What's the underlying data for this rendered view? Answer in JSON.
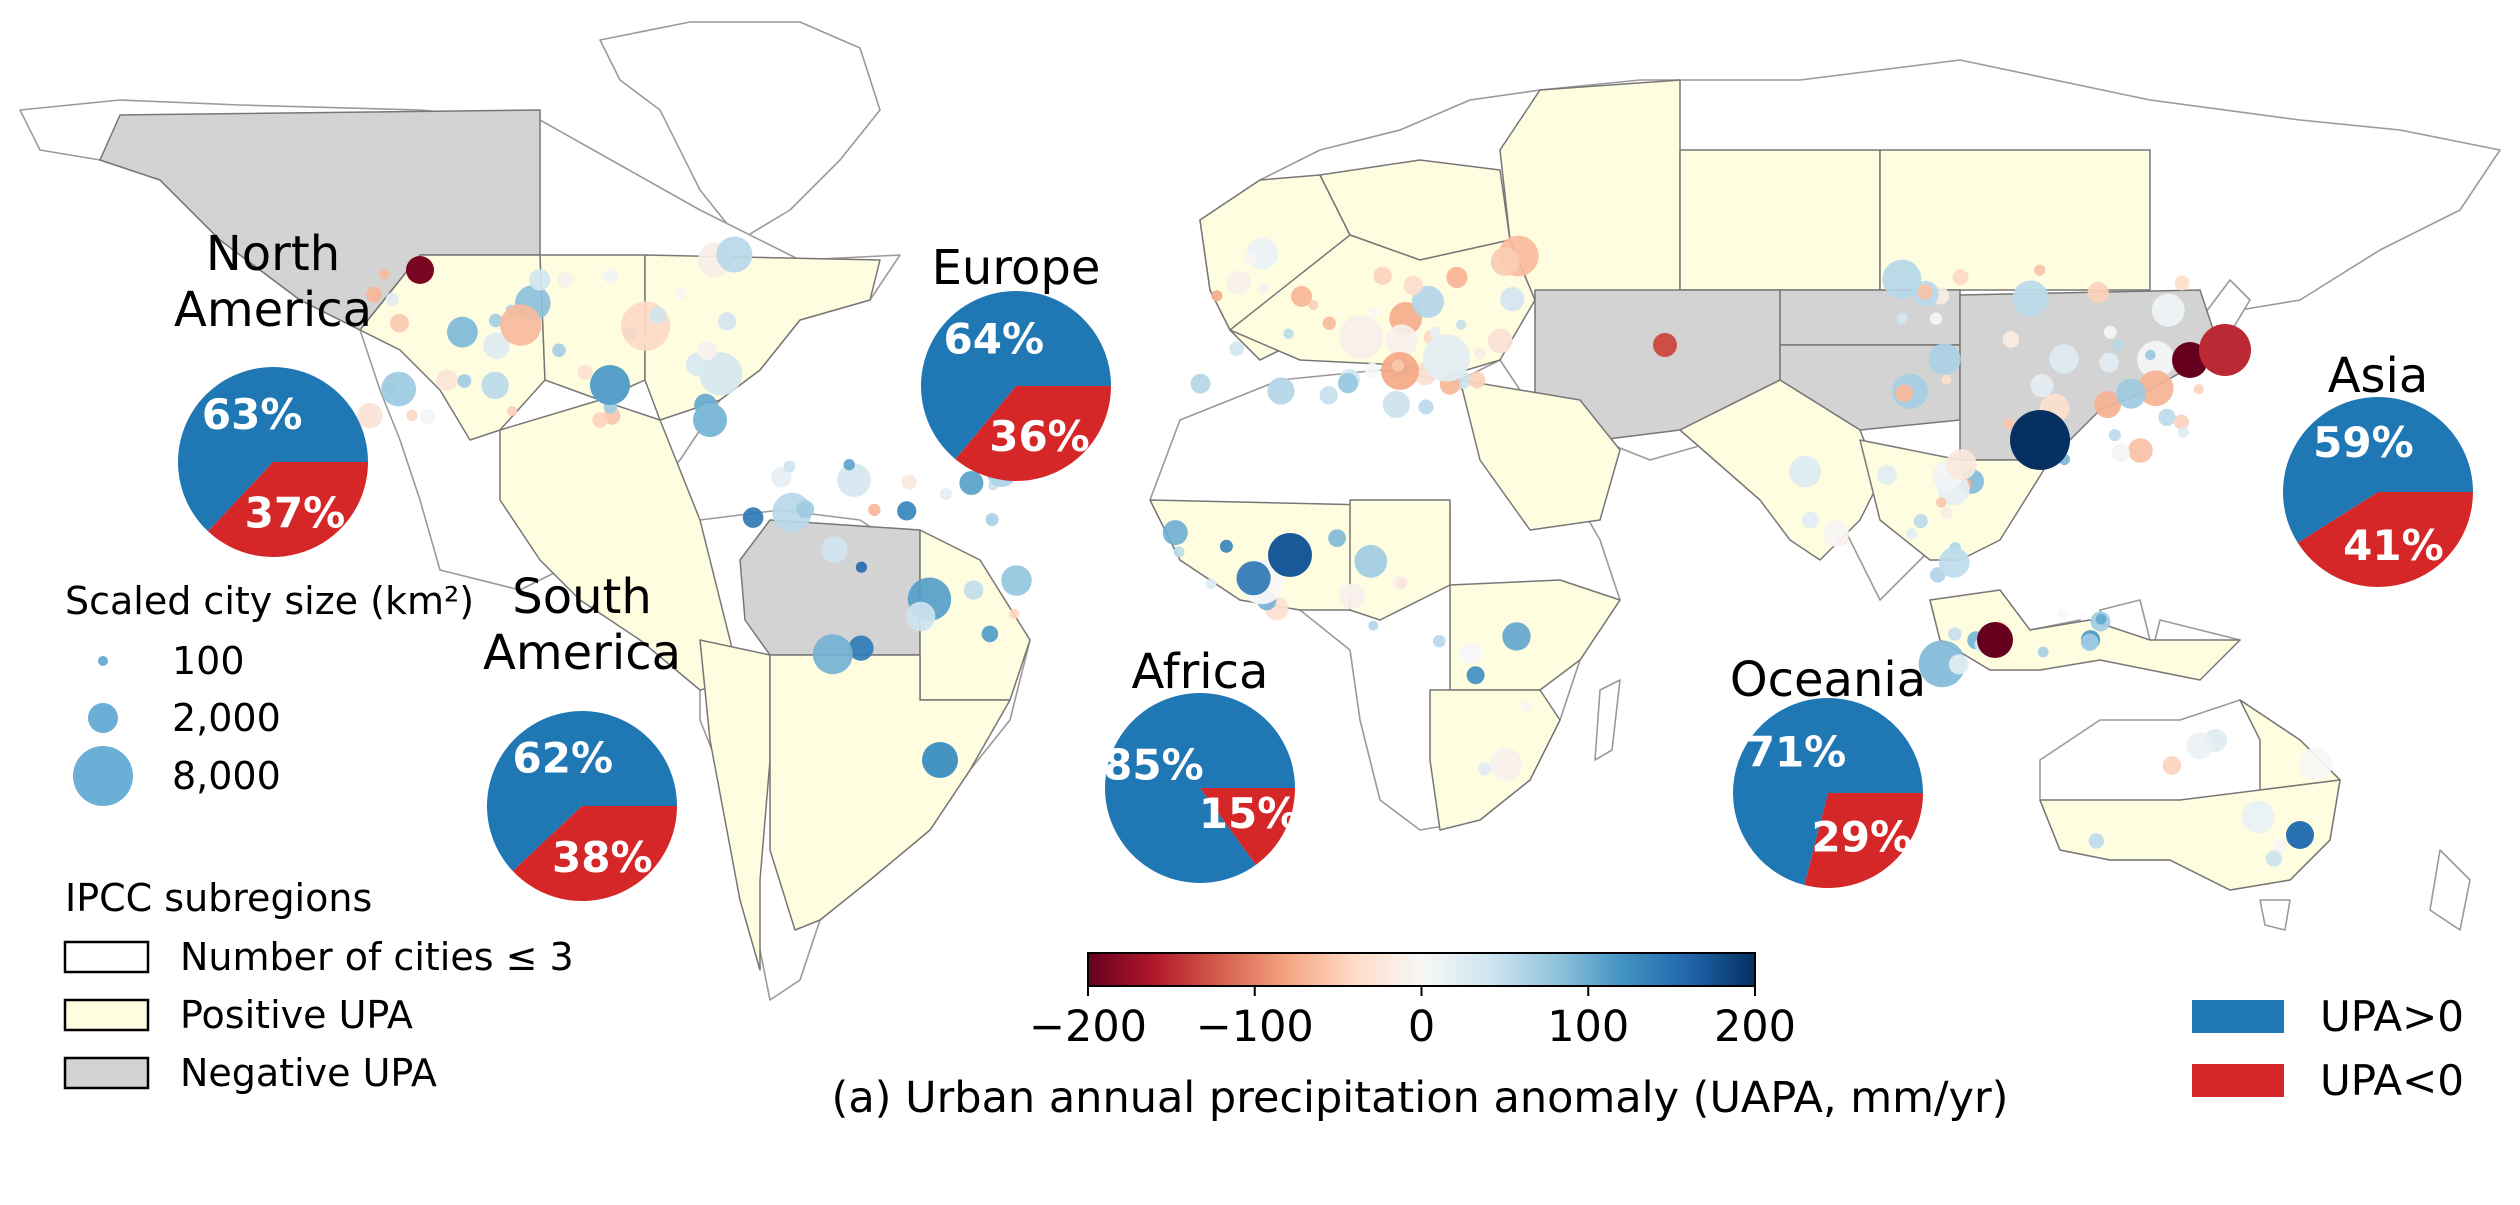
{
  "colors": {
    "upa_positive": "#1f77b4",
    "upa_negative": "#d62728",
    "region_positive": "#fffde0",
    "region_negative": "#d3d3d3",
    "region_few": "#ffffff",
    "land_outline": "#9a9a9a",
    "colormap": [
      "#67001f",
      "#b2182b",
      "#d6604d",
      "#f4a582",
      "#fddbc7",
      "#f7f7f7",
      "#d1e5f0",
      "#92c5de",
      "#4393c3",
      "#2166ac",
      "#053061"
    ]
  },
  "pie_legend": [
    {
      "label": "UPA>0",
      "color": "#1f77b4"
    },
    {
      "label": "UPA<0",
      "color": "#d62728"
    }
  ],
  "colorbar": {
    "title": "(a) Urban annual precipitation anomaly (UAPA, mm/yr)",
    "min": -200,
    "max": 200,
    "ticks": [
      {
        "value": -200,
        "label": "−200"
      },
      {
        "value": -100,
        "label": "−100"
      },
      {
        "value": 0,
        "label": "0"
      },
      {
        "value": 100,
        "label": "100"
      },
      {
        "value": 200,
        "label": "200"
      }
    ]
  },
  "size_legend": {
    "title": "Scaled city size (km²)",
    "items": [
      {
        "label": "100",
        "area": 100
      },
      {
        "label": "2,000",
        "area": 2000
      },
      {
        "label": "8,000",
        "area": 8000
      }
    ]
  },
  "subregion_legend": {
    "title": "IPCC subregions",
    "items": [
      {
        "key": "few",
        "label": "Number of cities ≤ 3"
      },
      {
        "key": "positive",
        "label": "Positive UPA"
      },
      {
        "key": "negative",
        "label": "Negative UPA"
      }
    ]
  },
  "continents": [
    {
      "name": "north-america",
      "title_lines": [
        "North",
        "America"
      ],
      "positive": 63,
      "negative": 37,
      "positive_label": "63%",
      "negative_label": "37%"
    },
    {
      "name": "south-america",
      "title_lines": [
        "South",
        "America"
      ],
      "positive": 62,
      "negative": 38,
      "positive_label": "62%",
      "negative_label": "38%"
    },
    {
      "name": "europe",
      "title_lines": [
        "Europe"
      ],
      "positive": 64,
      "negative": 36,
      "positive_label": "64%",
      "negative_label": "36%"
    },
    {
      "name": "africa",
      "title_lines": [
        "Africa"
      ],
      "positive": 85,
      "negative": 15,
      "positive_label": "85%",
      "negative_label": "15%"
    },
    {
      "name": "oceania",
      "title_lines": [
        "Oceania"
      ],
      "positive": 71,
      "negative": 29,
      "positive_label": "71%",
      "negative_label": "29%"
    },
    {
      "name": "asia",
      "title_lines": [
        "Asia"
      ],
      "positive": 59,
      "negative": 41,
      "positive_label": "59%",
      "negative_label": "41%"
    }
  ]
}
